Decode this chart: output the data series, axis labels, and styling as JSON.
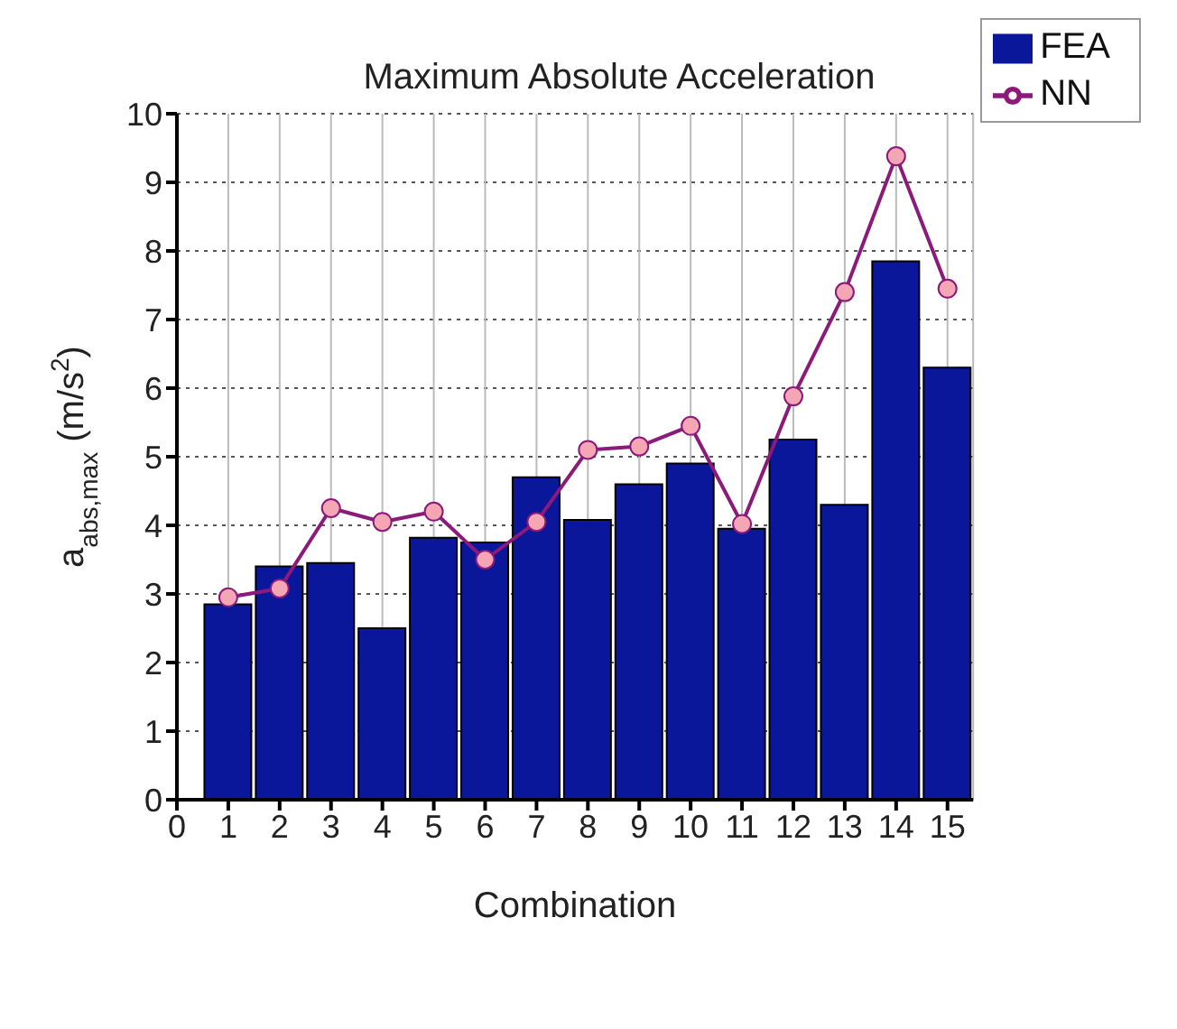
{
  "chart_data": {
    "type": "bar",
    "title": "Maximum Absolute Acceleration",
    "xlabel": "Combination",
    "ylabel": "a$_{abs,max}$ (m/s$^{2}$)",
    "x": [
      1,
      2,
      3,
      4,
      5,
      6,
      7,
      8,
      9,
      10,
      11,
      12,
      13,
      14,
      15
    ],
    "series": [
      {
        "name": "FEA",
        "color": "#0a179a",
        "values": [
          2.85,
          3.4,
          3.45,
          2.5,
          3.82,
          3.75,
          4.7,
          4.08,
          4.6,
          4.9,
          3.95,
          5.25,
          4.3,
          7.85,
          6.3
        ]
      },
      {
        "name": "NN",
        "type": "line",
        "color": "#8b1a7a",
        "marker": "circle",
        "values": [
          2.95,
          3.08,
          4.25,
          4.05,
          4.2,
          3.5,
          4.05,
          5.1,
          5.15,
          5.45,
          4.02,
          5.88,
          7.4,
          9.38,
          7.45
        ]
      }
    ],
    "xlim": [
      0,
      15.5
    ],
    "xticks": [
      0,
      1,
      2,
      3,
      4,
      5,
      6,
      7,
      8,
      9,
      10,
      11,
      12,
      13,
      14,
      15
    ],
    "ylim": [
      0,
      10
    ],
    "yticks": [
      0,
      1,
      2,
      3,
      4,
      5,
      6,
      7,
      8,
      9,
      10
    ],
    "grid": true,
    "legend": "top right"
  }
}
